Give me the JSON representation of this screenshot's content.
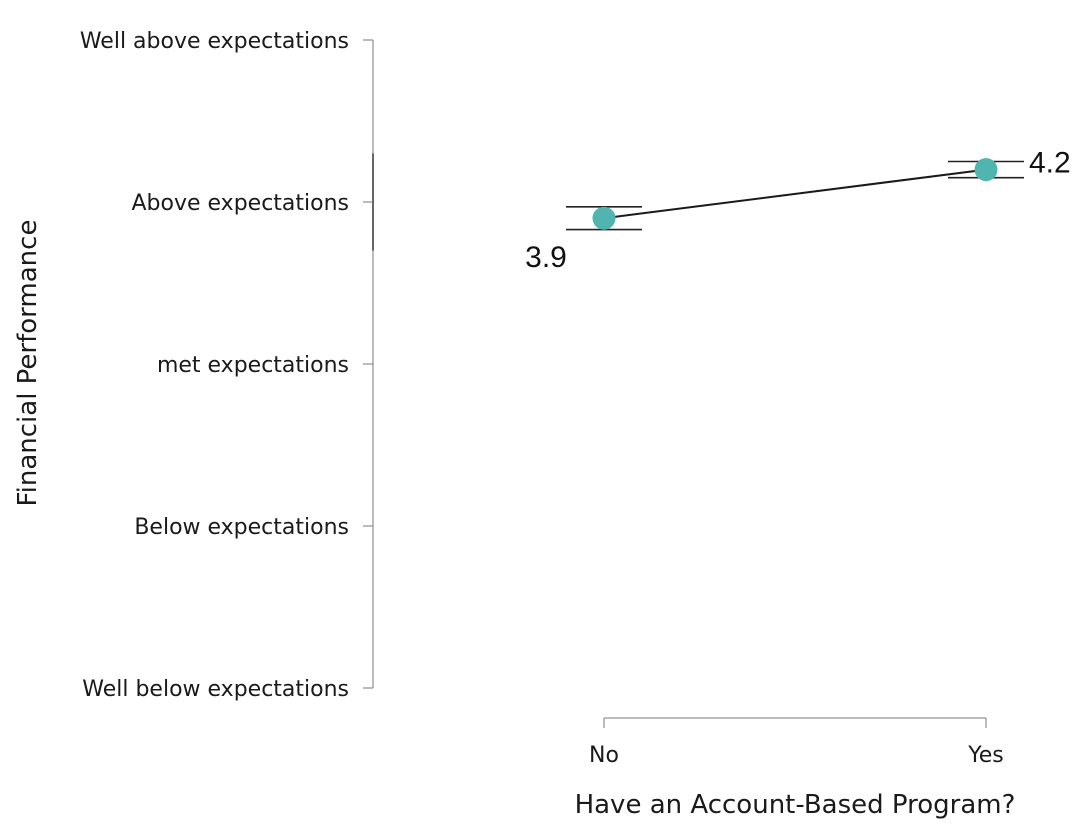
{
  "chart_data": {
    "type": "line",
    "xlabel": "Have an Account-Based Program?",
    "ylabel": "Financial Performance",
    "categories": [
      "No",
      "Yes"
    ],
    "values": [
      3.9,
      4.2
    ],
    "data_labels": [
      "3.9",
      "4.2"
    ],
    "error_bars": [
      {
        "low": 3.83,
        "high": 3.97
      },
      {
        "low": 4.15,
        "high": 4.25
      }
    ],
    "y_ticks": [
      {
        "value": 1,
        "label": "Well below expectations"
      },
      {
        "value": 2,
        "label": "Below expectations"
      },
      {
        "value": 3,
        "label": "met expectations"
      },
      {
        "value": 4,
        "label": "Above expectations"
      },
      {
        "value": 5,
        "label": "Well above expectations"
      }
    ],
    "ylim": [
      1,
      5
    ],
    "y_range_bar": [
      3.7,
      4.3
    ],
    "grid": false,
    "legend": "none",
    "colors": {
      "point": "#4fb5ae",
      "line": "#1a1a1a",
      "axis": "#7a7a7a"
    }
  }
}
